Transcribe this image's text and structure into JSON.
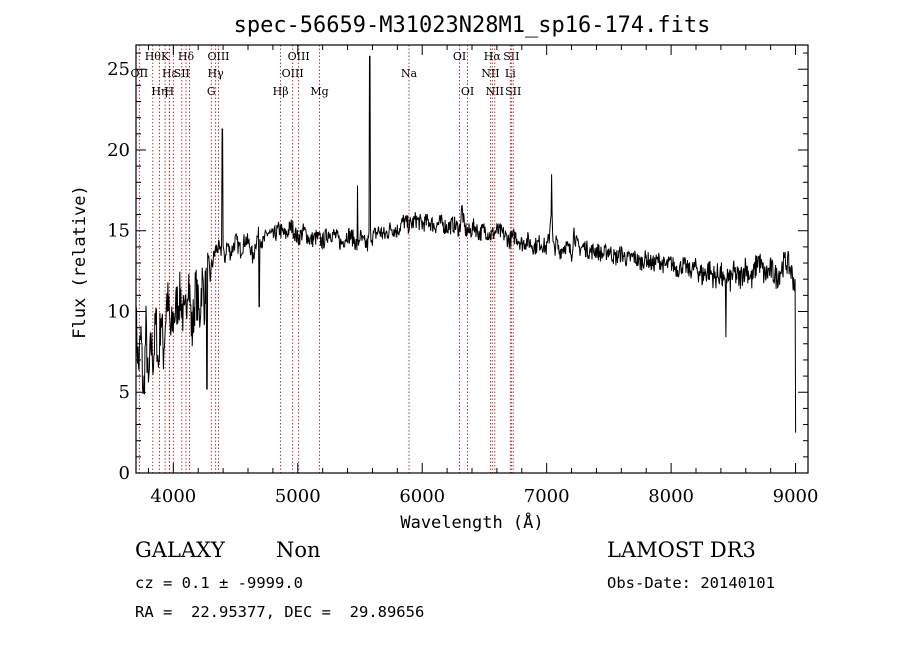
{
  "chart_data": {
    "type": "line",
    "title": "spec-56659-M31023N28M1_sp16-174.fits",
    "xlabel": "Wavelength (Å)",
    "ylabel": "Flux (relative)",
    "xlim": [
      3700,
      9100
    ],
    "ylim": [
      0,
      26.5
    ],
    "xticks": [
      4000,
      5000,
      6000,
      7000,
      8000,
      9000
    ],
    "yticks": [
      0,
      5,
      10,
      15,
      20,
      25
    ],
    "series": [
      {
        "name": "spectrum",
        "x": [
          3700,
          3720,
          3740,
          3760,
          3780,
          3800,
          3820,
          3840,
          3860,
          3880,
          3900,
          3920,
          3950,
          3980,
          4000,
          4030,
          4060,
          4090,
          4120,
          4150,
          4180,
          4210,
          4230,
          4250,
          4270,
          4290,
          4300,
          4320,
          4340,
          4360,
          4380,
          4395,
          4410,
          4430,
          4460,
          4500,
          4540,
          4580,
          4620,
          4640,
          4660,
          4690,
          4720,
          4760,
          4800,
          4850,
          4900,
          4950,
          5000,
          5050,
          5100,
          5150,
          5200,
          5250,
          5300,
          5350,
          5400,
          5450,
          5480,
          5500,
          5520,
          5560,
          5580,
          5600,
          5650,
          5700,
          5750,
          5800,
          5850,
          5900,
          5950,
          6000,
          6050,
          6100,
          6150,
          6200,
          6250,
          6300,
          6320,
          6340,
          6380,
          6420,
          6460,
          6500,
          6550,
          6600,
          6650,
          6700,
          6750,
          6800,
          6850,
          6900,
          6950,
          7000,
          7020,
          7040,
          7050,
          7060,
          7080,
          7100,
          7150,
          7200,
          7220,
          7240,
          7260,
          7300,
          7350,
          7400,
          7450,
          7500,
          7550,
          7600,
          7650,
          7700,
          7750,
          7800,
          7850,
          7900,
          7950,
          8000,
          8050,
          8100,
          8150,
          8200,
          8250,
          8300,
          8350,
          8400,
          8430,
          8450,
          8470,
          8500,
          8550,
          8600,
          8650,
          8700,
          8750,
          8800,
          8850,
          8900,
          8930,
          8960,
          8990,
          9000
        ],
        "values": [
          9.5,
          6.5,
          8.5,
          4.5,
          9.0,
          5.0,
          8.0,
          7.0,
          9.5,
          6.5,
          10.0,
          7.5,
          11.0,
          8.5,
          9.5,
          10.5,
          11.0,
          9.0,
          12.5,
          8.5,
          11.5,
          9.5,
          12.0,
          10.5,
          12.8,
          11.5,
          12.5,
          13.2,
          13.8,
          14.0,
          13.5,
          14.5,
          13.0,
          14.2,
          13.6,
          14.4,
          13.8,
          14.5,
          14.0,
          13.2,
          14.3,
          14.8,
          14.2,
          14.9,
          14.6,
          15.1,
          14.7,
          15.3,
          14.5,
          15.0,
          14.4,
          14.6,
          14.3,
          14.9,
          14.7,
          14.2,
          14.8,
          14.5,
          14.0,
          14.7,
          14.3,
          14.1,
          14.9,
          14.6,
          15.0,
          14.7,
          15.2,
          15.0,
          15.6,
          15.3,
          15.7,
          15.4,
          15.6,
          15.3,
          15.5,
          15.2,
          15.4,
          15.1,
          16.4,
          15.1,
          14.9,
          15.3,
          14.8,
          15.1,
          14.7,
          15.0,
          14.8,
          14.4,
          14.7,
          14.2,
          14.4,
          14.0,
          14.3,
          13.9,
          14.6,
          16.8,
          14.2,
          13.8,
          14.3,
          13.7,
          14.1,
          13.6,
          15.0,
          14.2,
          13.9,
          14.0,
          13.7,
          13.8,
          13.5,
          13.8,
          13.3,
          13.6,
          13.2,
          13.4,
          13.0,
          13.3,
          12.9,
          13.2,
          12.8,
          13.0,
          12.6,
          12.9,
          12.5,
          12.8,
          12.2,
          12.6,
          12.1,
          12.4,
          11.4,
          12.3,
          11.8,
          12.4,
          12.0,
          12.8,
          11.9,
          13.3,
          12.2,
          12.6,
          12.1,
          12.9,
          13.1,
          12.6,
          11.8,
          11.0
        ],
        "spikes": [
          {
            "x": 4395,
            "peak": 21.3
          },
          {
            "x": 4270,
            "low": 5.2
          },
          {
            "x": 4690,
            "low": 10.3
          },
          {
            "x": 5480,
            "peak": 17.8
          },
          {
            "x": 5577,
            "peak": 25.8
          },
          {
            "x": 7040,
            "peak": 18.5
          },
          {
            "x": 8440,
            "low": 8.4
          },
          {
            "x": 9000,
            "low": 2.5
          }
        ]
      }
    ],
    "line_markers": [
      {
        "x": 3727,
        "label": "OII",
        "row": 2
      },
      {
        "x": 3835,
        "label": "Hθ",
        "row": 1
      },
      {
        "x": 3889,
        "label": "Hη",
        "row": 3
      },
      {
        "x": 3934,
        "label": "K",
        "row": 1
      },
      {
        "x": 3970,
        "label": "Hε",
        "row": 2
      },
      {
        "x": 3968,
        "label": "H",
        "row": 3
      },
      {
        "x": 4000,
        "label": "",
        "row": 0
      },
      {
        "x": 4068,
        "label": "SII",
        "row": 2
      },
      {
        "x": 4102,
        "label": "Hδ",
        "row": 1
      },
      {
        "x": 4130,
        "label": "",
        "row": 0
      },
      {
        "x": 4305,
        "label": "G",
        "row": 3
      },
      {
        "x": 4340,
        "label": "Hγ",
        "row": 2
      },
      {
        "x": 4363,
        "label": "OIII",
        "row": 1
      },
      {
        "x": 4862,
        "label": "Hβ",
        "row": 3
      },
      {
        "x": 4959,
        "label": "OIII",
        "row": 2
      },
      {
        "x": 5007,
        "label": "OIII",
        "row": 1
      },
      {
        "x": 5175,
        "label": "Mg",
        "row": 3
      },
      {
        "x": 5894,
        "label": "Na",
        "row": 2
      },
      {
        "x": 6300,
        "label": "OI",
        "row": 1
      },
      {
        "x": 6364,
        "label": "OI",
        "row": 3
      },
      {
        "x": 6548,
        "label": "NII",
        "row": 2
      },
      {
        "x": 6563,
        "label": "Hα",
        "row": 1
      },
      {
        "x": 6583,
        "label": "NII",
        "row": 3
      },
      {
        "x": 6708,
        "label": "Li",
        "row": 2
      },
      {
        "x": 6716,
        "label": "SII",
        "row": 1
      },
      {
        "x": 6731,
        "label": "SII",
        "row": 3
      }
    ]
  },
  "info": {
    "object_class": "GALAXY",
    "subclass": "Non",
    "survey": "LAMOST DR3",
    "redshift": "cz = 0.1 ± -9999.0",
    "obs_date": "Obs-Date: 20140101",
    "coords": "RA =  22.95377, DEC =  29.89656"
  }
}
